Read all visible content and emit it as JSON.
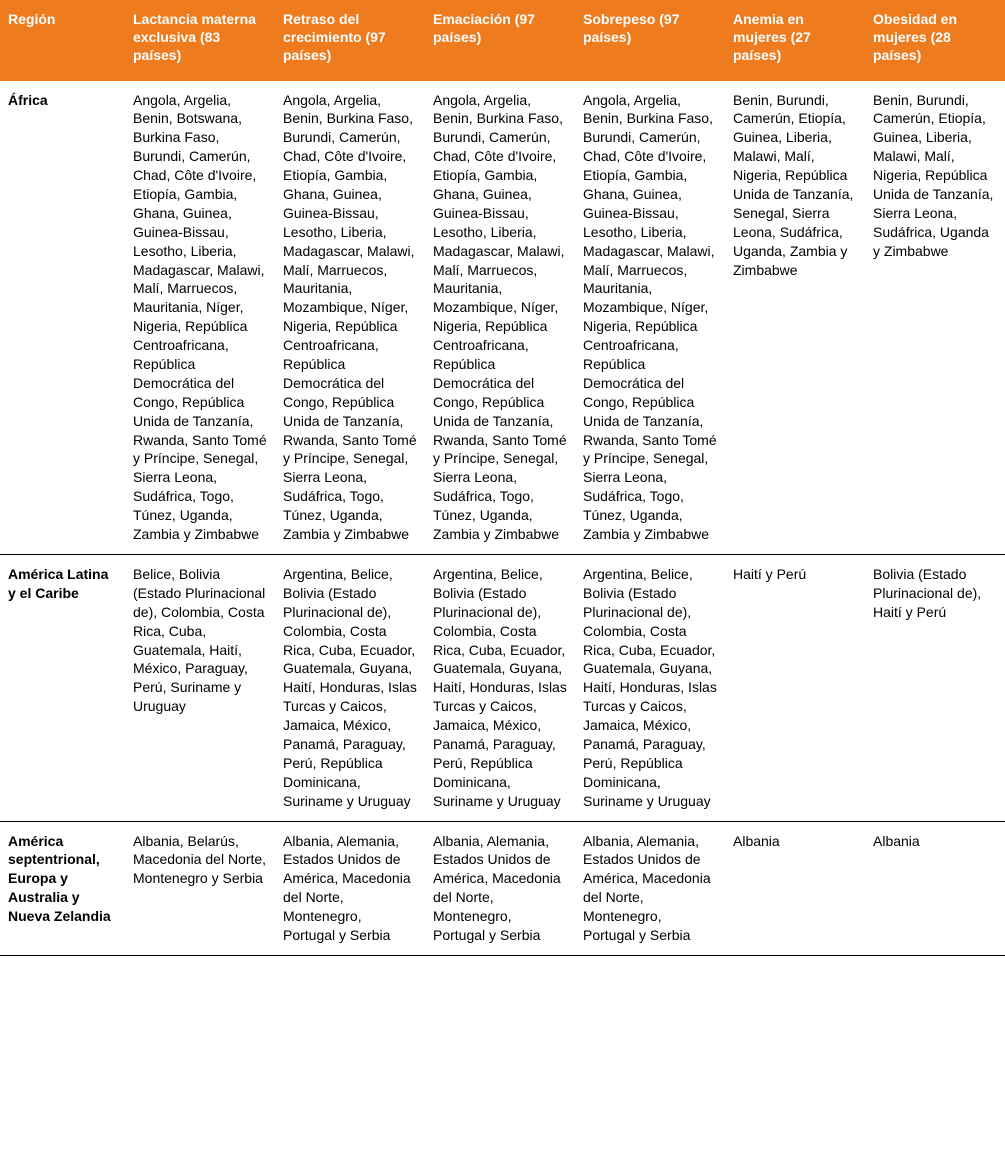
{
  "header_bg": "#ee7b1e",
  "columns": [
    "Región",
    "Lactancia materna exclusiva (83 países)",
    "Retraso del crecimiento (97 países)",
    "Emaciación (97 países)",
    "Sobrepeso (97 países)",
    "Anemia en mujeres (27 países)",
    "Obesidad en mujeres (28 países)"
  ],
  "rows": [
    {
      "region": "África",
      "c1": "Angola, Argelia, Benin, Botswana, Burkina Faso, Burundi, Camerún, Chad, Côte d'Ivoire, Etiopía, Gambia, Ghana, Guinea, Guinea-Bissau, Lesotho, Liberia, Madagascar, Malawi, Malí, Marruecos, Mauritania, Níger, Nigeria, República Centroafricana, República Democrática del Congo, República Unida de Tanzanía, Rwanda, Santo Tomé y Príncipe, Senegal, Sierra Leona, Sudáfrica, Togo, Túnez, Uganda, Zambia y Zimbabwe",
      "c2": "Angola, Argelia, Benin, Burkina Faso, Burundi, Camerún, Chad, Côte d'Ivoire, Etiopía, Gambia, Ghana, Guinea, Guinea-Bissau, Lesotho, Liberia, Madagascar, Malawi, Malí, Marruecos, Mauritania, Mozambique, Níger, Nigeria, República Centroafricana, República Democrática del Congo, República Unida de Tanzanía, Rwanda, Santo Tomé y Príncipe, Senegal, Sierra Leona, Sudáfrica, Togo, Túnez, Uganda, Zambia y Zimbabwe",
      "c3": "Angola, Argelia, Benin, Burkina Faso, Burundi, Camerún, Chad, Côte d'Ivoire, Etiopía, Gambia, Ghana, Guinea, Guinea-Bissau, Lesotho, Liberia, Madagascar, Malawi, Malí, Marruecos, Mauritania, Mozambique, Níger, Nigeria, República Centroafricana, República Democrática del Congo, República Unida de Tanzanía, Rwanda, Santo Tomé y Príncipe, Senegal, Sierra Leona, Sudáfrica, Togo, Túnez, Uganda, Zambia y Zimbabwe",
      "c4": "Angola, Argelia, Benin, Burkina Faso, Burundi, Camerún, Chad, Côte d'Ivoire, Etiopía, Gambia, Ghana, Guinea, Guinea-Bissau, Lesotho, Liberia, Madagascar, Malawi, Malí, Marruecos, Mauritania, Mozambique, Níger, Nigeria, República Centroafricana, República Democrática del Congo, República Unida de Tanzanía, Rwanda, Santo Tomé y Príncipe, Senegal, Sierra Leona, Sudáfrica, Togo, Túnez, Uganda, Zambia y Zimbabwe",
      "c5": "Benin, Burundi, Camerún, Etiopía, Guinea, Liberia, Malawi, Malí, Nigeria, República Unida de Tanzanía, Senegal, Sierra Leona, Sudáfrica, Uganda, Zambia y Zimbabwe",
      "c6": "Benin, Burundi, Camerún, Etiopía, Guinea, Liberia, Malawi, Malí, Nigeria, República Unida de Tanzanía, Sierra Leona, Sudáfrica, Uganda y Zimbabwe"
    },
    {
      "region": "América Latina y el Caribe",
      "c1": "Belice, Bolivia (Estado Plurinacional de), Colombia, Costa Rica, Cuba, Guatemala, Haití, México, Paraguay, Perú, Suriname y Uruguay",
      "c2": "Argentina, Belice, Bolivia (Estado Plurinacional de), Colombia, Costa Rica, Cuba, Ecuador, Guatemala, Guyana, Haití, Honduras, Islas Turcas y Caicos, Jamaica, México, Panamá, Paraguay, Perú, República Dominicana, Suriname y Uruguay",
      "c3": "Argentina, Belice, Bolivia (Estado Plurinacional de), Colombia, Costa Rica, Cuba, Ecuador, Guatemala, Guyana, Haití, Honduras, Islas Turcas y Caicos, Jamaica, México, Panamá, Paraguay, Perú, República Dominicana, Suriname y Uruguay",
      "c4": "Argentina, Belice, Bolivia (Estado Plurinacional de), Colombia, Costa Rica, Cuba, Ecuador, Guatemala, Guyana, Haití, Honduras, Islas Turcas y Caicos, Jamaica, México, Panamá, Paraguay, Perú, República Dominicana, Suriname y Uruguay",
      "c5": "Haití y Perú",
      "c6": "Bolivia (Estado Plurinacional de), Haití y Perú"
    },
    {
      "region": "América septentrional, Europa y Australia y Nueva Zelandia",
      "c1": "Albania, Belarús, Macedonia del Norte, Montenegro y Serbia",
      "c2": "Albania, Alemania, Estados Unidos de América, Macedonia del Norte, Montenegro, Portugal y Serbia",
      "c3": "Albania, Alemania, Estados Unidos de América, Macedonia del Norte, Montenegro, Portugal y Serbia",
      "c4": "Albania, Alemania, Estados Unidos de América, Macedonia del Norte, Montenegro, Portugal y Serbia",
      "c5": "Albania",
      "c6": "Albania"
    }
  ]
}
